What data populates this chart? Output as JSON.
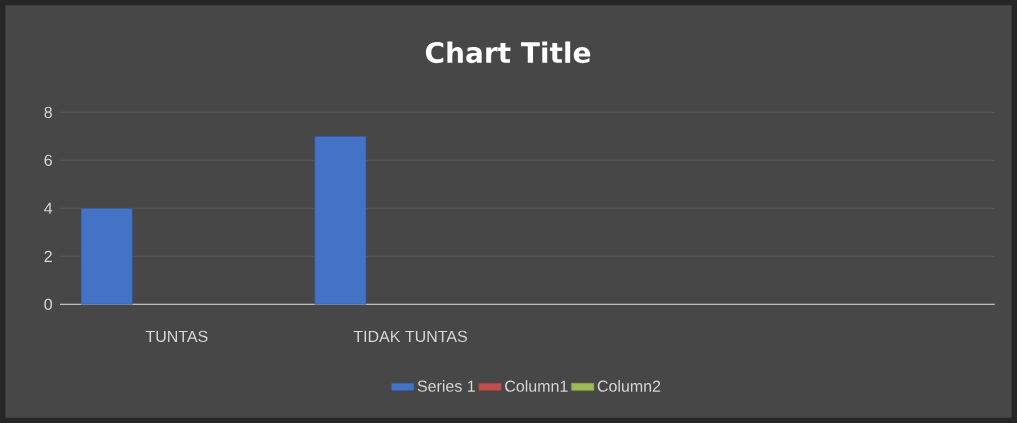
{
  "chart_data": {
    "type": "bar",
    "title": "Chart Title",
    "categories": [
      "TUNTAS",
      "TIDAK TUNTAS",
      null,
      null
    ],
    "series": [
      {
        "name": "Series 1",
        "color": "#4472c4",
        "values": [
          4,
          7,
          null,
          null
        ]
      },
      {
        "name": "Column1",
        "color": "#c0504d",
        "values": [
          null,
          null,
          null,
          null
        ]
      },
      {
        "name": "Column2",
        "color": "#9bbb59",
        "values": [
          null,
          null,
          null,
          null
        ]
      }
    ],
    "ylim": [
      0,
      8
    ],
    "yticks": [
      0,
      2,
      4,
      6,
      8
    ],
    "grid": "y",
    "legend": "bottom"
  }
}
